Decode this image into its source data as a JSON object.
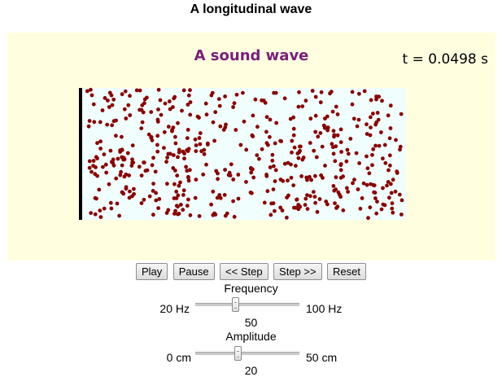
{
  "page": {
    "title": "A longitudinal wave"
  },
  "simulation": {
    "title": "A sound wave",
    "time_readout": "t = 0.0498 s",
    "colors": {
      "panel_background": "#ffffe0",
      "medium_background": "#f0fefe",
      "particle": "#8b0000",
      "title": "#7b1e7a"
    }
  },
  "controls": {
    "buttons": {
      "play": "Play",
      "pause": "Pause",
      "step_back": "<< Step",
      "step_forward": "Step >>",
      "reset": "Reset"
    },
    "frequency": {
      "label": "Frequency",
      "min_label": "20 Hz",
      "max_label": "100 Hz",
      "min": 20,
      "max": 100,
      "value": "50"
    },
    "amplitude": {
      "label": "Amplitude",
      "min_label": "0 cm",
      "max_label": "50 cm",
      "min": 0,
      "max": 50,
      "value": "20"
    }
  }
}
